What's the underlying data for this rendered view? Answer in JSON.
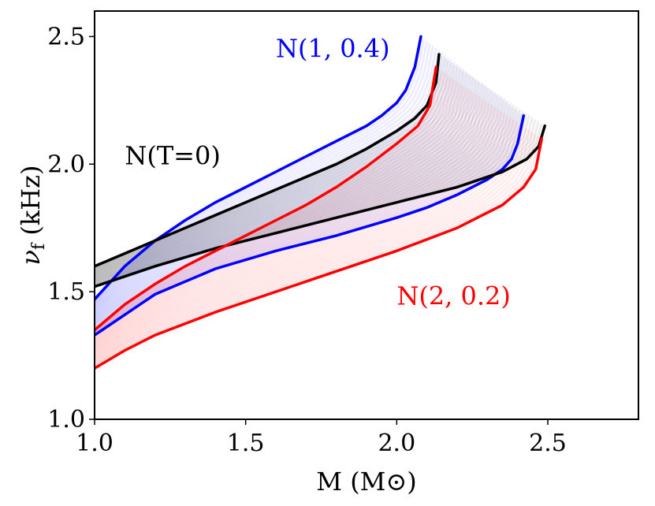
{
  "chart_data": {
    "type": "line",
    "title": "",
    "xlabel": "M (M⊙)",
    "ylabel": "νf (kHz)",
    "ylabel_main": "ν",
    "ylabel_sub": "f",
    "ylabel_rest": " (kHz)",
    "xlim": [
      1.0,
      2.8
    ],
    "ylim": [
      1.0,
      2.6
    ],
    "xticks": [
      1.0,
      1.5,
      2.0,
      2.5
    ],
    "xtick_labels": [
      "1.0",
      "1.5",
      "2.0",
      "2.5"
    ],
    "yticks": [
      1.0,
      1.5,
      2.0,
      2.5
    ],
    "ytick_labels": [
      "1.0",
      "1.5",
      "2.0",
      "2.5"
    ],
    "grid": false,
    "annotations": [
      {
        "text": "N(1, 0.4)",
        "color": "#0000ff",
        "x": 1.6,
        "y": 2.42
      },
      {
        "text": "N(T=0)",
        "color": "#000000",
        "x": 1.1,
        "y": 2.0
      },
      {
        "text": "N(2, 0.2)",
        "color": "#ff0000",
        "x": 2.0,
        "y": 1.45
      }
    ],
    "series": [
      {
        "name": "N(1, 0.4) upper",
        "color": "#0000ff",
        "x": [
          1.0,
          1.1,
          1.2,
          1.3,
          1.4,
          1.5,
          1.6,
          1.7,
          1.8,
          1.9,
          1.95,
          2.0,
          2.03,
          2.06,
          2.08
        ],
        "y": [
          1.47,
          1.6,
          1.7,
          1.78,
          1.85,
          1.91,
          1.97,
          2.03,
          2.09,
          2.15,
          2.19,
          2.24,
          2.29,
          2.38,
          2.5
        ]
      },
      {
        "name": "N(1, 0.4) lower",
        "color": "#0000ff",
        "x": [
          1.0,
          1.2,
          1.4,
          1.6,
          1.8,
          2.0,
          2.1,
          2.2,
          2.3,
          2.35,
          2.38,
          2.4,
          2.42
        ],
        "y": [
          1.33,
          1.49,
          1.59,
          1.66,
          1.72,
          1.79,
          1.83,
          1.88,
          1.94,
          1.98,
          2.02,
          2.08,
          2.19
        ]
      },
      {
        "name": "N(T=0) upper",
        "color": "#000000",
        "x": [
          1.0,
          1.2,
          1.4,
          1.6,
          1.8,
          1.9,
          2.0,
          2.06,
          2.1,
          2.13,
          2.14
        ],
        "y": [
          1.6,
          1.7,
          1.8,
          1.9,
          2.0,
          2.06,
          2.13,
          2.18,
          2.23,
          2.32,
          2.43
        ]
      },
      {
        "name": "N(T=0) lower",
        "color": "#000000",
        "x": [
          1.0,
          1.2,
          1.4,
          1.6,
          1.8,
          2.0,
          2.2,
          2.35,
          2.43,
          2.47,
          2.49
        ],
        "y": [
          1.52,
          1.6,
          1.67,
          1.73,
          1.79,
          1.85,
          1.91,
          1.97,
          2.02,
          2.07,
          2.15
        ]
      },
      {
        "name": "N(2, 0.2) upper",
        "color": "#ff0000",
        "x": [
          1.0,
          1.1,
          1.2,
          1.3,
          1.4,
          1.5,
          1.6,
          1.7,
          1.8,
          1.9,
          2.0,
          2.07,
          2.11,
          2.13
        ],
        "y": [
          1.35,
          1.45,
          1.53,
          1.6,
          1.66,
          1.72,
          1.78,
          1.84,
          1.91,
          1.99,
          2.08,
          2.15,
          2.23,
          2.38
        ]
      },
      {
        "name": "N(2, 0.2) lower",
        "color": "#ff0000",
        "x": [
          1.0,
          1.1,
          1.2,
          1.4,
          1.6,
          1.8,
          2.0,
          2.2,
          2.35,
          2.42,
          2.46,
          2.48
        ],
        "y": [
          1.2,
          1.27,
          1.33,
          1.42,
          1.5,
          1.58,
          1.66,
          1.75,
          1.84,
          1.91,
          1.98,
          2.1
        ]
      }
    ]
  }
}
